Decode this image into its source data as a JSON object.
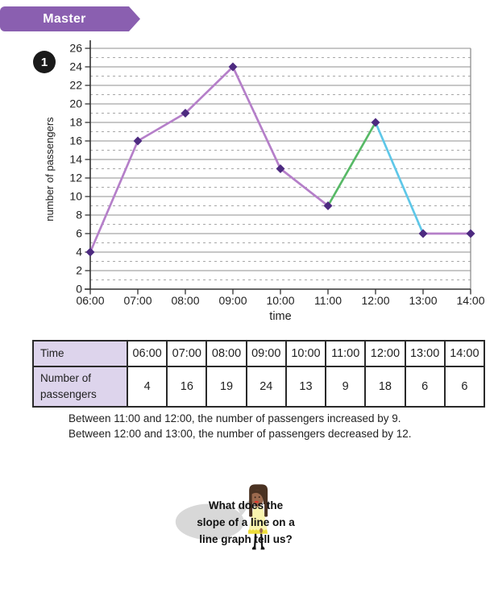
{
  "header": {
    "ribbon_label": "Master"
  },
  "question": {
    "number": "1"
  },
  "chart_data": {
    "type": "line",
    "x": [
      "06:00",
      "07:00",
      "08:00",
      "09:00",
      "10:00",
      "11:00",
      "12:00",
      "13:00",
      "14:00"
    ],
    "values": [
      4,
      16,
      19,
      24,
      13,
      9,
      18,
      6,
      6
    ],
    "title": "",
    "xlabel": "time",
    "ylabel": "number of passengers",
    "ylim": [
      0,
      26
    ],
    "ytick_step": 2,
    "grid": "horizontal: solid lines at even values, dashed lines at odd values",
    "legend": "none",
    "line_color": "#b57fc9",
    "segment_colors": [
      "#b57fc9",
      "#b57fc9",
      "#b57fc9",
      "#b57fc9",
      "#b57fc9",
      "#57b966",
      "#5ec7e8",
      "#b57fc9"
    ],
    "marker": {
      "shape": "diamond",
      "color": "#4d2a80"
    }
  },
  "table": {
    "row_headers": [
      "Time",
      "Number of passengers"
    ],
    "columns": [
      "06:00",
      "07:00",
      "08:00",
      "09:00",
      "10:00",
      "11:00",
      "12:00",
      "13:00",
      "14:00"
    ],
    "values": [
      "4",
      "16",
      "19",
      "24",
      "13",
      "9",
      "18",
      "6",
      "6"
    ],
    "header_bg": "#ddd4ec"
  },
  "notes": {
    "line1": "Between 11:00 and 12:00, the number of passengers increased by 9.",
    "line2": "Between 12:00 and 13:00, the number of passengers decreased by 12."
  },
  "speech_bubble": {
    "lines": [
      "What does the",
      "slope of a line on a",
      "line graph tell us?"
    ]
  },
  "colors": {
    "ribbon": "#8a5fb0",
    "badge": "#1a1a1a",
    "bubble": "#d8d8d8",
    "table_border": "#2a2a2a"
  }
}
